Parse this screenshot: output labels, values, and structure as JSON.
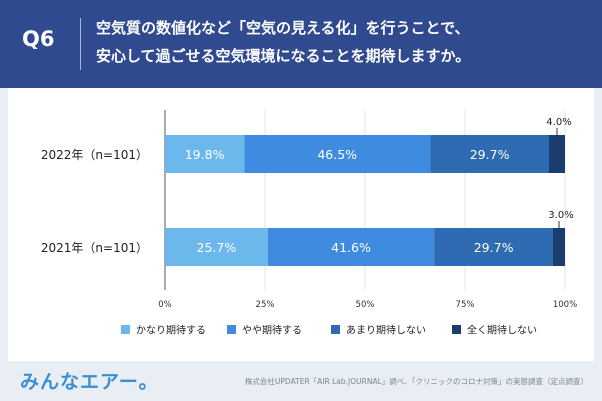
{
  "header": {
    "qnum": "Q6",
    "line1": "空気質の数値化など「空気の見える化」を行うことで、",
    "line2": "安心して過ごせる空気環境になることを期待しますか。"
  },
  "colors": {
    "header_bg": "#2f4a8f",
    "series": [
      "#6cb8ec",
      "#3f8be0",
      "#2e6bb2",
      "#1b3c6e"
    ]
  },
  "chart_data": {
    "type": "bar",
    "orientation": "horizontal",
    "stacked": true,
    "categories": [
      "2022年（n=101）",
      "2021年（n=101）"
    ],
    "series": [
      {
        "name": "かなり期待する",
        "values": [
          19.8,
          25.7
        ],
        "labels": [
          "19.8%",
          "25.7%"
        ]
      },
      {
        "name": "やや期待する",
        "values": [
          46.5,
          41.6
        ],
        "labels": [
          "46.5%",
          "41.6%"
        ]
      },
      {
        "name": "あまり期待しない",
        "values": [
          29.7,
          29.7
        ],
        "labels": [
          "29.7%",
          "29.7%"
        ]
      },
      {
        "name": "全く期待しない",
        "values": [
          4.0,
          3.0
        ],
        "labels": [
          "4.0%",
          "3.0%"
        ]
      }
    ],
    "xlim": [
      0,
      100
    ],
    "xticks": [
      "0%",
      "25%",
      "50%",
      "75%",
      "100%"
    ],
    "grid": true,
    "legend": "bottom"
  },
  "footer": {
    "logo": "みんなエアー。",
    "source": "株式会社UPDATER「AIR Lab.JOURNAL」調べ、「クリニックのコロナ対策」の実態調査（定点調査）"
  }
}
